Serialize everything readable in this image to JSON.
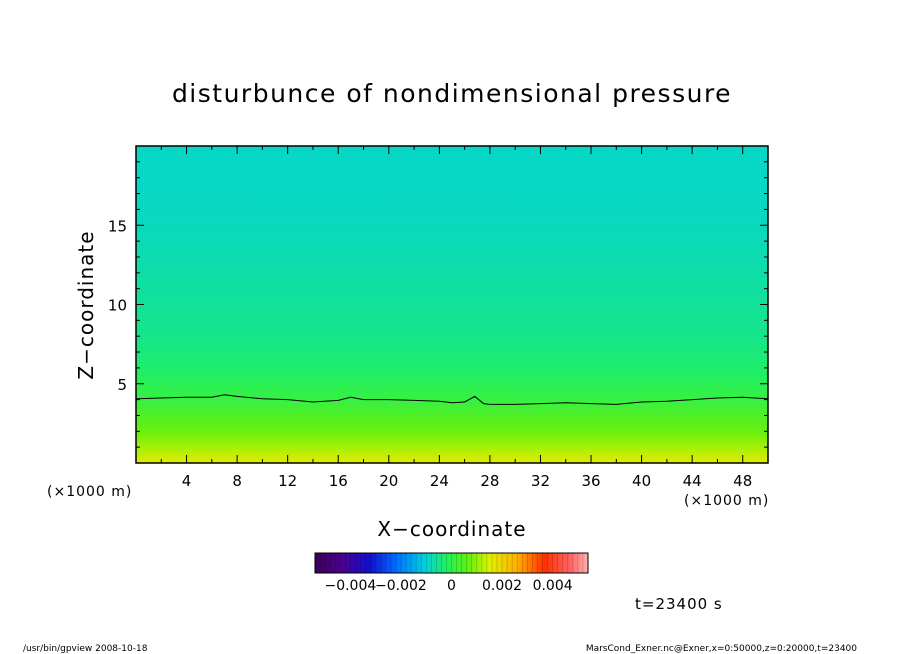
{
  "chart_data": {
    "type": "heatmap",
    "title": "disturbunce of nondimensional pressure",
    "xlabel": "X−coordinate",
    "ylabel": "Z−coordinate",
    "x_unit": "(×1000 m)",
    "y_unit": "(×1000 m)",
    "xlim": [
      0,
      50
    ],
    "ylim": [
      0,
      20
    ],
    "x_ticks": [
      4,
      8,
      12,
      16,
      20,
      24,
      28,
      32,
      36,
      40,
      44,
      48
    ],
    "y_ticks": [
      5,
      10,
      15
    ],
    "field_z": [
      0,
      1,
      2,
      3,
      4,
      5,
      6,
      8,
      10,
      12,
      14,
      17,
      20
    ],
    "field_values": [
      0.0016,
      0.0011,
      0.0007,
      0.0004,
      0.0001,
      -0.0001,
      -0.0003,
      -0.0005,
      -0.0006,
      -0.0007,
      -0.0008,
      -0.0009,
      -0.0009
    ],
    "contour_level": 0,
    "contour_x": [
      0,
      2,
      4,
      6,
      7,
      8,
      10,
      12,
      14,
      16,
      17,
      18,
      20,
      22,
      24,
      25,
      26,
      26.8,
      27.5,
      28,
      30,
      32,
      34,
      36,
      38,
      40,
      42,
      44,
      46,
      48,
      50
    ],
    "contour_z": [
      4.05,
      4.1,
      4.15,
      4.15,
      4.3,
      4.2,
      4.05,
      4.0,
      3.85,
      3.95,
      4.15,
      4.0,
      4.0,
      3.95,
      3.9,
      3.8,
      3.85,
      4.2,
      3.75,
      3.7,
      3.7,
      3.75,
      3.8,
      3.75,
      3.7,
      3.85,
      3.9,
      4.0,
      4.1,
      4.15,
      4.05
    ],
    "colorbar": {
      "range": [
        -0.0054,
        0.0054
      ],
      "tick_values": [
        -0.004,
        -0.002,
        0,
        0.002,
        0.004
      ],
      "tick_labels": [
        "−0.004",
        "−0.002",
        "0",
        "0.002",
        "0.004"
      ]
    }
  },
  "time_label": "t=23400 s",
  "footer_left": "/usr/bin/gpview   2008-10-18",
  "footer_right": "MarsCond_Exner.nc@Exner,x=0:50000,z=0:20000,t=23400"
}
